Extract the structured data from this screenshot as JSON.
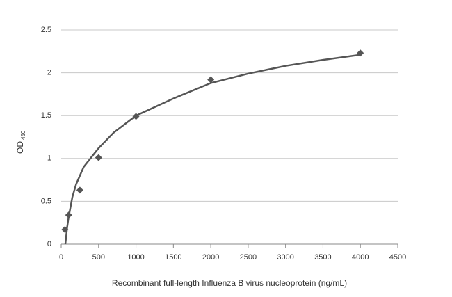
{
  "chart_data": {
    "type": "scatter",
    "x_label": "Recombinant full-length Influenza B virus nucleoprotein  (ng/mL)",
    "y_label": "OD",
    "y_label_sub": "450",
    "series": [
      {
        "color": "#555555",
        "x": [
          50,
          100,
          250,
          500,
          1000,
          2000,
          4000
        ],
        "values": [
          0.17,
          0.34,
          0.63,
          1.01,
          1.49,
          1.92,
          2.23
        ]
      }
    ],
    "curve": {
      "color": "#555555",
      "x": [
        56,
        80,
        100,
        150,
        200,
        300,
        500,
        700,
        1000,
        1500,
        2000,
        2500,
        3000,
        3500,
        4000
      ],
      "values": [
        0,
        0.2,
        0.32,
        0.55,
        0.7,
        0.9,
        1.12,
        1.3,
        1.5,
        1.7,
        1.88,
        1.99,
        2.08,
        2.15,
        2.21
      ]
    },
    "xlim": [
      0,
      4500
    ],
    "xticks": [
      0,
      500,
      1000,
      1500,
      2000,
      2500,
      3000,
      3500,
      4000,
      4500
    ],
    "ylim": [
      0,
      2.5
    ],
    "yticks": [
      0,
      0.5,
      1,
      1.5,
      2,
      2.5
    ],
    "grid": true
  }
}
